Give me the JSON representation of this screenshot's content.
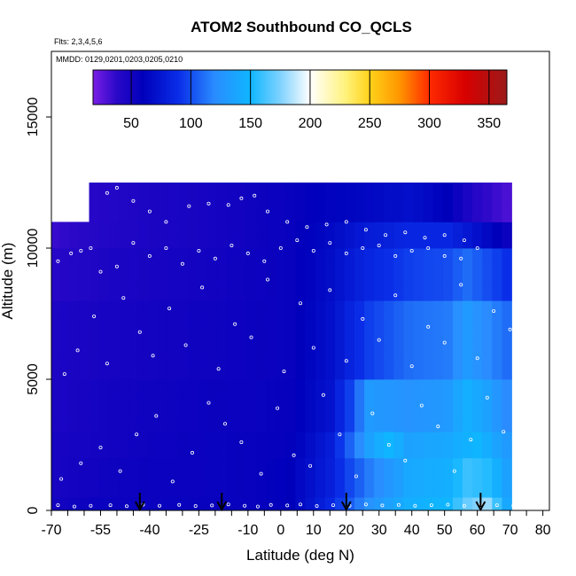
{
  "chart_data": {
    "type": "heatmap",
    "title": "ATOM2 Southbound CO_QCLS",
    "flights_note": "Flts: 2,3,4,5,6",
    "dates_note": "MMDD: 0129,0201,0203,0205,0210",
    "xlabel": "Latitude (deg N)",
    "ylabel": "Altitude (m)",
    "xlim": [
      -70,
      82
    ],
    "ylim": [
      0,
      17500
    ],
    "x_ticks": [
      -70,
      -55,
      -40,
      -25,
      -10,
      0,
      10,
      20,
      30,
      40,
      50,
      60,
      70,
      80
    ],
    "y_ticks": [
      0,
      5000,
      10000,
      15000
    ],
    "colorbar": {
      "range": [
        18,
        365
      ],
      "ticks": [
        50,
        100,
        150,
        200,
        250,
        300,
        350
      ],
      "stops": [
        {
          "v": 18,
          "color": "#7a1ee6"
        },
        {
          "v": 38,
          "color": "#2a08c8"
        },
        {
          "v": 60,
          "color": "#0000bb"
        },
        {
          "v": 90,
          "color": "#0a2ee8"
        },
        {
          "v": 120,
          "color": "#2a8cff"
        },
        {
          "v": 150,
          "color": "#0fb6ff"
        },
        {
          "v": 175,
          "color": "#7fd2ff"
        },
        {
          "v": 200,
          "color": "#ffffff"
        },
        {
          "v": 230,
          "color": "#fff27a"
        },
        {
          "v": 250,
          "color": "#ffd21a"
        },
        {
          "v": 275,
          "color": "#ff9600"
        },
        {
          "v": 300,
          "color": "#ff2a00"
        },
        {
          "v": 330,
          "color": "#d80000"
        },
        {
          "v": 365,
          "color": "#9c1a1a"
        }
      ]
    },
    "arrow_markers_lat": [
      -43,
      -18,
      20,
      61
    ],
    "lat_bins": [
      -69,
      -66,
      -63,
      -60,
      -57,
      -54,
      -51,
      -48,
      -45,
      -42,
      -39,
      -36,
      -33,
      -30,
      -27,
      -24,
      -21,
      -18,
      -15,
      -12,
      -9,
      -6,
      -3,
      0,
      3,
      6,
      9,
      12,
      15,
      18,
      21,
      24,
      27,
      30,
      33,
      36,
      39,
      42,
      45,
      48,
      51,
      54,
      57,
      60,
      63,
      66,
      69
    ],
    "alt_bins": [
      250,
      750,
      1250,
      1750,
      2250,
      2750,
      3250,
      3750,
      4250,
      4750,
      5250,
      5750,
      6250,
      6750,
      7250,
      7750,
      8250,
      8750,
      9250,
      9750,
      10250,
      10750,
      11250,
      11750,
      12250
    ],
    "layers": [
      {
        "alt_from": 0,
        "alt_to": 500,
        "lat": [
          -69,
          -54,
          -39,
          -24,
          -9,
          3,
          15,
          27,
          39,
          51,
          57,
          63,
          69
        ],
        "co": [
          50,
          55,
          55,
          56,
          56,
          60,
          85,
          125,
          145,
          150,
          170,
          180,
          140
        ]
      },
      {
        "alt_from": 500,
        "alt_to": 2000,
        "lat": [
          -69,
          -54,
          -39,
          -24,
          -9,
          3,
          15,
          27,
          39,
          51,
          57,
          63,
          69
        ],
        "co": [
          48,
          52,
          55,
          55,
          56,
          60,
          80,
          115,
          140,
          145,
          160,
          155,
          135
        ]
      },
      {
        "alt_from": 2000,
        "alt_to": 3000,
        "lat": [
          -69,
          -54,
          -39,
          -24,
          -9,
          3,
          15,
          27,
          33,
          39,
          51,
          60,
          69
        ],
        "co": [
          48,
          50,
          53,
          55,
          56,
          58,
          78,
          135,
          150,
          135,
          140,
          150,
          130
        ]
      },
      {
        "alt_from": 3000,
        "alt_to": 5000,
        "lat": [
          -69,
          -54,
          -39,
          -24,
          -9,
          3,
          15,
          21,
          27,
          39,
          51,
          57,
          63,
          69
        ],
        "co": [
          46,
          50,
          52,
          54,
          55,
          57,
          72,
          95,
          130,
          125,
          130,
          145,
          135,
          120
        ]
      },
      {
        "alt_from": 5000,
        "alt_to": 8000,
        "lat": [
          -69,
          -54,
          -39,
          -24,
          -9,
          3,
          15,
          27,
          39,
          51,
          57,
          63,
          69
        ],
        "co": [
          45,
          48,
          50,
          52,
          54,
          56,
          70,
          95,
          110,
          115,
          130,
          120,
          110
        ]
      },
      {
        "alt_from": 8000,
        "alt_to": 10000,
        "lat": [
          -69,
          -54,
          -39,
          -24,
          -9,
          3,
          15,
          27,
          39,
          51,
          57,
          63,
          69
        ],
        "co": [
          40,
          45,
          48,
          50,
          53,
          56,
          68,
          85,
          95,
          100,
          110,
          100,
          90
        ]
      },
      {
        "alt_from": 10000,
        "alt_to": 11000,
        "lat": [
          -69,
          -54,
          -39,
          -24,
          -9,
          3,
          15,
          27,
          39,
          51,
          60,
          69
        ],
        "co": [
          35,
          42,
          46,
          48,
          52,
          56,
          66,
          78,
          85,
          85,
          70,
          55
        ]
      },
      {
        "alt_from": 11000,
        "alt_to": 12500,
        "lat": [
          -57,
          -39,
          -24,
          -9,
          3,
          15,
          27,
          39,
          51,
          60,
          69
        ],
        "co": [
          40,
          46,
          48,
          52,
          56,
          62,
          65,
          70,
          60,
          40,
          30
        ]
      }
    ],
    "sample_points": [
      [
        -68,
        200
      ],
      [
        -63,
        150
      ],
      [
        -58,
        180
      ],
      [
        -52,
        200
      ],
      [
        -47,
        160
      ],
      [
        -42,
        220
      ],
      [
        -37,
        180
      ],
      [
        -31,
        210
      ],
      [
        -26,
        170
      ],
      [
        -21,
        190
      ],
      [
        -16,
        230
      ],
      [
        -11,
        180
      ],
      [
        -7,
        150
      ],
      [
        -3,
        210
      ],
      [
        2,
        190
      ],
      [
        6,
        230
      ],
      [
        11,
        170
      ],
      [
        16,
        200
      ],
      [
        21,
        180
      ],
      [
        26,
        230
      ],
      [
        31,
        190
      ],
      [
        36,
        210
      ],
      [
        41,
        180
      ],
      [
        46,
        200
      ],
      [
        51,
        220
      ],
      [
        56,
        180
      ],
      [
        61,
        230
      ],
      [
        66,
        200
      ],
      [
        71,
        180
      ],
      [
        -67,
        1200
      ],
      [
        -61,
        1800
      ],
      [
        -55,
        2400
      ],
      [
        -49,
        1500
      ],
      [
        -44,
        2900
      ],
      [
        -38,
        3600
      ],
      [
        -33,
        1100
      ],
      [
        -27,
        2200
      ],
      [
        -22,
        4100
      ],
      [
        -17,
        3300
      ],
      [
        -12,
        2600
      ],
      [
        -6,
        1400
      ],
      [
        -1,
        3900
      ],
      [
        4,
        2100
      ],
      [
        9,
        1700
      ],
      [
        13,
        4400
      ],
      [
        18,
        2900
      ],
      [
        23,
        1300
      ],
      [
        28,
        3700
      ],
      [
        33,
        2500
      ],
      [
        38,
        1900
      ],
      [
        43,
        4000
      ],
      [
        48,
        3200
      ],
      [
        53,
        1500
      ],
      [
        58,
        2700
      ],
      [
        63,
        4300
      ],
      [
        68,
        3000
      ],
      [
        -66,
        5200
      ],
      [
        -62,
        6100
      ],
      [
        -57,
        7400
      ],
      [
        -53,
        5600
      ],
      [
        -48,
        8100
      ],
      [
        -43,
        6800
      ],
      [
        -39,
        5900
      ],
      [
        -34,
        7700
      ],
      [
        -29,
        6300
      ],
      [
        -24,
        8500
      ],
      [
        -19,
        5400
      ],
      [
        -14,
        7100
      ],
      [
        -9,
        6600
      ],
      [
        -4,
        8800
      ],
      [
        1,
        5300
      ],
      [
        6,
        7900
      ],
      [
        10,
        6200
      ],
      [
        15,
        8400
      ],
      [
        20,
        5700
      ],
      [
        25,
        7300
      ],
      [
        30,
        6500
      ],
      [
        35,
        8200
      ],
      [
        40,
        5500
      ],
      [
        45,
        7000
      ],
      [
        50,
        6400
      ],
      [
        55,
        8600
      ],
      [
        60,
        5800
      ],
      [
        65,
        7600
      ],
      [
        70,
        6900
      ],
      [
        -68,
        9500
      ],
      [
        -64,
        9800
      ],
      [
        -61,
        9900
      ],
      [
        -58,
        10000
      ],
      [
        -55,
        9100
      ],
      [
        -50,
        9300
      ],
      [
        -45,
        10200
      ],
      [
        -40,
        9700
      ],
      [
        -35,
        10000
      ],
      [
        -30,
        9400
      ],
      [
        -25,
        9900
      ],
      [
        -20,
        9600
      ],
      [
        -15,
        10100
      ],
      [
        -10,
        9800
      ],
      [
        -5,
        9500
      ],
      [
        0,
        10000
      ],
      [
        5,
        10300
      ],
      [
        10,
        9900
      ],
      [
        15,
        10200
      ],
      [
        20,
        9800
      ],
      [
        25,
        10000
      ],
      [
        30,
        10100
      ],
      [
        35,
        9700
      ],
      [
        40,
        9900
      ],
      [
        45,
        10000
      ],
      [
        50,
        9700
      ],
      [
        55,
        9600
      ],
      [
        60,
        10000
      ],
      [
        -53,
        12100
      ],
      [
        -50,
        12300
      ],
      [
        -45,
        11800
      ],
      [
        -40,
        11400
      ],
      [
        -35,
        11000
      ],
      [
        -28,
        11600
      ],
      [
        -22,
        11700
      ],
      [
        -16,
        11650
      ],
      [
        -12,
        11900
      ],
      [
        -8,
        12000
      ],
      [
        -4,
        11400
      ],
      [
        2,
        11000
      ],
      [
        8,
        10800
      ],
      [
        14,
        10900
      ],
      [
        20,
        11000
      ],
      [
        26,
        10700
      ],
      [
        32,
        10500
      ],
      [
        38,
        10600
      ],
      [
        44,
        10400
      ],
      [
        50,
        10500
      ],
      [
        56,
        10300
      ]
    ]
  }
}
